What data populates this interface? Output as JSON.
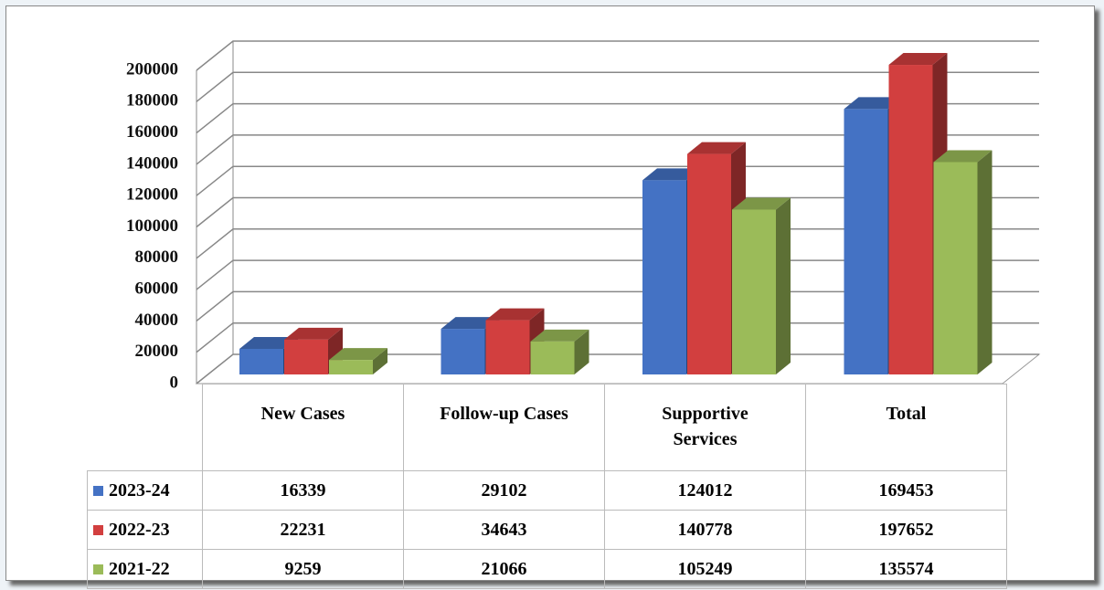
{
  "chart_data": {
    "type": "bar3d",
    "categories": [
      "New Cases",
      "Follow-up Cases",
      "Supportive Services",
      "Total"
    ],
    "series": [
      {
        "name": "2023-24",
        "color": "#4472c4",
        "values": [
          16339,
          29102,
          124012,
          169453
        ]
      },
      {
        "name": "2022-23",
        "color": "#d23f3f",
        "values": [
          22231,
          34643,
          140778,
          197652
        ]
      },
      {
        "name": "2021-22",
        "color": "#9bbb59",
        "values": [
          9259,
          21066,
          105249,
          135574
        ]
      }
    ],
    "ylim": [
      0,
      200000
    ],
    "yticks": [
      0,
      20000,
      40000,
      60000,
      80000,
      100000,
      120000,
      140000,
      160000,
      180000,
      200000
    ],
    "grid": true,
    "data_table": true
  }
}
